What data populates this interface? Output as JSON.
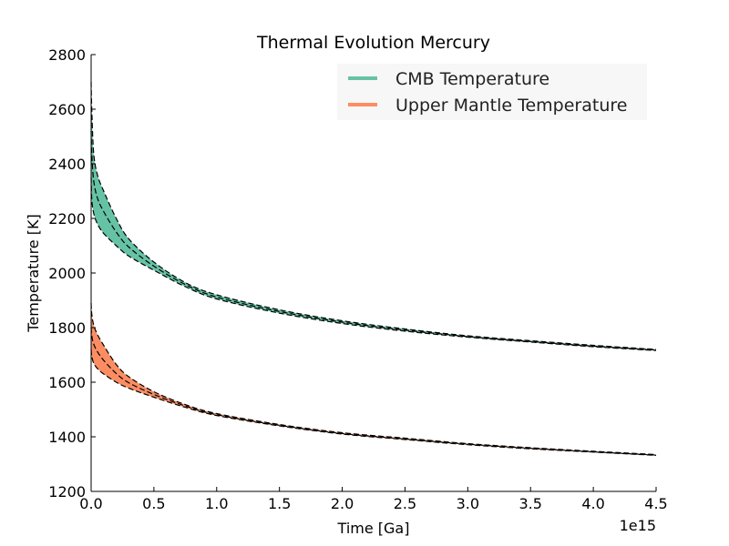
{
  "chart_data": {
    "type": "area",
    "title": "Thermal Evolution Mercury",
    "xlabel": "Time [Ga]",
    "ylabel": "Temperature [K]",
    "x_offset_label": "1e15",
    "xlim": [
      0,
      4.5
    ],
    "ylim": [
      1200,
      2800
    ],
    "x_ticks": [
      0.0,
      0.5,
      1.0,
      1.5,
      2.0,
      2.5,
      3.0,
      3.5,
      4.0,
      4.5
    ],
    "x_tick_labels": [
      "0.0",
      "0.5",
      "1.0",
      "1.5",
      "2.0",
      "2.5",
      "3.0",
      "3.5",
      "4.0",
      "4.5"
    ],
    "y_ticks": [
      1200,
      1400,
      1600,
      1800,
      2000,
      2200,
      2400,
      2600,
      2800
    ],
    "y_tick_labels": [
      "1200",
      "1400",
      "1600",
      "1800",
      "2000",
      "2200",
      "2400",
      "2600",
      "2800"
    ],
    "grid": false,
    "legend_position": "top-right",
    "x": [
      0.0,
      0.005,
      0.02,
      0.05,
      0.1,
      0.2,
      0.3,
      0.5,
      0.75,
      1.0,
      1.5,
      2.0,
      2.5,
      3.0,
      3.5,
      4.0,
      4.5
    ],
    "series": [
      {
        "name": "CMB Temperature",
        "color": "#66c2a5",
        "upper": [
          2700,
          2600,
          2440,
          2360,
          2300,
          2200,
          2125,
          2040,
          1965,
          1920,
          1865,
          1825,
          1795,
          1770,
          1752,
          1735,
          1720
        ],
        "lower": [
          2350,
          2270,
          2220,
          2180,
          2145,
          2100,
          2062,
          2010,
          1950,
          1905,
          1853,
          1815,
          1787,
          1765,
          1747,
          1730,
          1716
        ],
        "dashed_lines": [
          [
            2700,
            2600,
            2440,
            2360,
            2300,
            2200,
            2125,
            2040,
            1965,
            1920,
            1865,
            1825,
            1795,
            1770,
            1752,
            1735,
            1720
          ],
          [
            2520,
            2440,
            2340,
            2275,
            2225,
            2150,
            2095,
            2025,
            1958,
            1912,
            1859,
            1820,
            1791,
            1767,
            1749,
            1732,
            1718
          ],
          [
            2350,
            2270,
            2220,
            2180,
            2145,
            2100,
            2062,
            2010,
            1950,
            1905,
            1853,
            1815,
            1787,
            1765,
            1747,
            1730,
            1716
          ]
        ]
      },
      {
        "name": "Upper Mantle Temperature",
        "color": "#fc8d62",
        "upper": [
          1890,
          1850,
          1810,
          1775,
          1735,
          1665,
          1620,
          1565,
          1518,
          1485,
          1445,
          1415,
          1395,
          1375,
          1360,
          1347,
          1335
        ],
        "lower": [
          1720,
          1695,
          1670,
          1650,
          1630,
          1600,
          1578,
          1545,
          1508,
          1478,
          1440,
          1410,
          1390,
          1371,
          1356,
          1344,
          1332
        ],
        "dashed_lines": [
          [
            1890,
            1850,
            1810,
            1775,
            1735,
            1665,
            1620,
            1565,
            1518,
            1485,
            1445,
            1415,
            1395,
            1375,
            1360,
            1347,
            1335
          ],
          [
            1800,
            1770,
            1740,
            1712,
            1680,
            1632,
            1598,
            1555,
            1513,
            1481,
            1442,
            1412,
            1392,
            1373,
            1358,
            1345,
            1333
          ],
          [
            1720,
            1695,
            1670,
            1650,
            1630,
            1600,
            1578,
            1545,
            1508,
            1478,
            1440,
            1410,
            1390,
            1371,
            1356,
            1344,
            1332
          ]
        ]
      }
    ]
  }
}
